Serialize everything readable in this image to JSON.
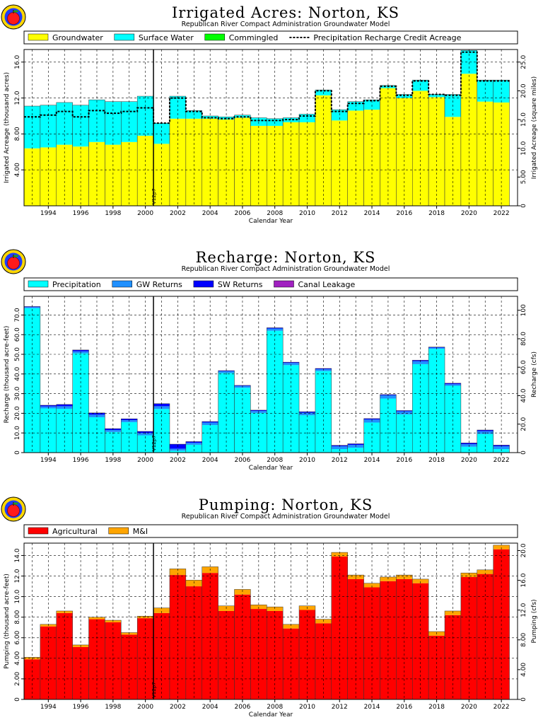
{
  "common": {
    "subtitle": "Republican River Compact Administration Groundwater Model",
    "xlabel": "Calendar Year",
    "marker_label": "V12p7",
    "marker_year": 2000.5,
    "logo_icon": "apple-logo-icon",
    "year_ticks": [
      "1994",
      "1996",
      "1998",
      "2000",
      "2002",
      "2004",
      "2006",
      "2008",
      "2010",
      "2012",
      "2014",
      "2016",
      "2018",
      "2020",
      "2022"
    ]
  },
  "colors": {
    "groundwater": "#ffff00",
    "surface_water": "#00ffff",
    "commingled": "#00ff00",
    "precipitation": "#00ffff",
    "gw_returns": "#2090ff",
    "sw_returns": "#0000ff",
    "canal_leakage": "#a020c0",
    "agricultural": "#ff0000",
    "mi": "#ffa500"
  },
  "chart_data": [
    {
      "type": "bar",
      "stacked": true,
      "title": "Irrigated Acres: Norton, KS",
      "subtitle": "Republican River Compact Administration Groundwater Model",
      "xlabel": "Calendar Year",
      "ylabel": "Irrigated Acreage (thousand acres)",
      "y2label": "Irrigated Acreage (square miles)",
      "ylim": [
        0,
        17.4
      ],
      "yticks": [
        "4.00",
        "8.00",
        "12.0",
        "16.0"
      ],
      "y2ticks": [
        "0",
        "5.00",
        "10.0",
        "15.0",
        "20.0",
        "25.0"
      ],
      "grid": true,
      "legend_position": "top",
      "x": [
        1993,
        1994,
        1995,
        1996,
        1997,
        1998,
        1999,
        2000,
        2001,
        2002,
        2003,
        2004,
        2005,
        2006,
        2007,
        2008,
        2009,
        2010,
        2011,
        2012,
        2013,
        2014,
        2015,
        2016,
        2017,
        2018,
        2019,
        2020,
        2021,
        2022
      ],
      "series": [
        {
          "name": "Groundwater",
          "color": "#ffff00",
          "values": [
            6.4,
            6.5,
            6.8,
            6.6,
            7.1,
            6.8,
            7.1,
            7.8,
            6.9,
            9.7,
            9.7,
            9.7,
            9.6,
            9.8,
            8.9,
            8.9,
            9.3,
            9.3,
            12.3,
            9.5,
            10.6,
            10.7,
            13.1,
            12.0,
            12.8,
            12.1,
            9.9,
            14.7,
            11.6,
            11.5
          ]
        },
        {
          "name": "Surface Water",
          "color": "#00ffff",
          "values": [
            4.7,
            4.7,
            4.7,
            4.6,
            4.7,
            4.8,
            4.5,
            4.4,
            2.3,
            2.5,
            0.9,
            0.3,
            0.3,
            0.3,
            0.9,
            0.8,
            0.5,
            0.9,
            0.6,
            1.2,
            1.0,
            1.1,
            0.3,
            0.4,
            1.2,
            0.3,
            2.5,
            2.6,
            2.4,
            2.5
          ]
        },
        {
          "name": "Commingled",
          "color": "#00ff00",
          "values": [
            0,
            0,
            0,
            0,
            0,
            0,
            0,
            0,
            0,
            0,
            0,
            0,
            0,
            0,
            0,
            0,
            0,
            0,
            0,
            0,
            0,
            0,
            0,
            0,
            0,
            0,
            0,
            0,
            0,
            0
          ]
        }
      ],
      "line_series": {
        "name": "Precipitation Recharge Credit Acreage",
        "values": [
          9.9,
          10.1,
          10.5,
          9.9,
          10.6,
          10.3,
          10.5,
          10.9,
          9.2,
          12.0,
          10.5,
          9.8,
          9.7,
          9.9,
          9.5,
          9.5,
          9.6,
          10.0,
          12.8,
          10.5,
          11.4,
          11.7,
          13.3,
          12.3,
          13.9,
          12.4,
          12.3,
          17.1,
          13.9,
          13.9
        ]
      }
    },
    {
      "type": "bar",
      "stacked": true,
      "title": "Recharge: Norton, KS",
      "subtitle": "Republican River Compact Administration Groundwater Model",
      "xlabel": "Calendar Year",
      "ylabel": "Recharge (thousand acre-feet)",
      "y2label": "Recharge (cfs)",
      "ylim": [
        0,
        79.5
      ],
      "yticks": [
        "0",
        "10.0",
        "20.0",
        "30.0",
        "40.0",
        "50.0",
        "60.0",
        "70.0"
      ],
      "y2ticks": [
        "0",
        "20.0",
        "40.0",
        "60.0",
        "80.0",
        "100"
      ],
      "grid": true,
      "legend_position": "top",
      "x": [
        1993,
        1994,
        1995,
        1996,
        1997,
        1998,
        1999,
        2000,
        2001,
        2002,
        2003,
        2004,
        2005,
        2006,
        2007,
        2008,
        2009,
        2010,
        2011,
        2012,
        2013,
        2014,
        2015,
        2016,
        2017,
        2018,
        2019,
        2020,
        2021,
        2022
      ],
      "series": [
        {
          "name": "Precipitation",
          "color": "#00ffff",
          "values": [
            73.5,
            22.5,
            22.3,
            50.5,
            18.0,
            10.5,
            15.5,
            8.8,
            22.2,
            1.0,
            4.0,
            14.0,
            40.5,
            33.0,
            20.2,
            62.0,
            44.5,
            19.0,
            41.5,
            1.8,
            2.5,
            15.3,
            27.5,
            19.5,
            45.0,
            52.8,
            34.0,
            3.0,
            9.5,
            1.8
          ]
        },
        {
          "name": "GW Returns",
          "color": "#2090ff",
          "values": [
            0.5,
            1.0,
            1.3,
            1.0,
            1.3,
            1.0,
            1.0,
            1.2,
            1.4,
            1.0,
            1.0,
            1.3,
            0.9,
            0.9,
            1.0,
            1.1,
            1.1,
            1.3,
            0.9,
            1.4,
            1.4,
            1.5,
            1.6,
            1.5,
            1.5,
            0.6,
            0.8,
            1.3,
            1.4,
            1.4
          ]
        },
        {
          "name": "SW Returns",
          "color": "#0000ff",
          "values": [
            0.3,
            0.6,
            0.9,
            0.7,
            0.9,
            0.7,
            0.7,
            0.8,
            1.3,
            2.3,
            0.6,
            0.5,
            0.3,
            0.3,
            0.4,
            0.4,
            0.4,
            0.5,
            0.4,
            0.5,
            0.6,
            0.5,
            0.4,
            0.4,
            0.5,
            0.3,
            0.5,
            0.6,
            0.6,
            0.6
          ]
        },
        {
          "name": "Canal Leakage",
          "color": "#a020c0",
          "values": [
            0,
            0,
            0,
            0,
            0,
            0,
            0,
            0,
            0,
            0,
            0,
            0,
            0,
            0,
            0,
            0,
            0,
            0,
            0,
            0,
            0,
            0,
            0,
            0,
            0,
            0,
            0,
            0,
            0,
            0
          ]
        }
      ]
    },
    {
      "type": "bar",
      "stacked": true,
      "title": "Pumping: Norton, KS",
      "subtitle": "Republican River Compact Administration Groundwater Model",
      "xlabel": "Calendar Year",
      "ylabel": "Pumping (thousand acre-feet)",
      "y2label": "Pumping (cfs)",
      "ylim": [
        0,
        15.2
      ],
      "yticks": [
        "0",
        "2.00",
        "4.00",
        "6.00",
        "8.00",
        "10.0",
        "12.0",
        "14.0"
      ],
      "y2ticks": [
        "0",
        "4.00",
        "8.00",
        "12.0",
        "16.0",
        "20.0"
      ],
      "grid": true,
      "legend_position": "top",
      "x": [
        1993,
        1994,
        1995,
        1996,
        1997,
        1998,
        1999,
        2000,
        2001,
        2002,
        2003,
        2004,
        2005,
        2006,
        2007,
        2008,
        2009,
        2010,
        2011,
        2012,
        2013,
        2014,
        2015,
        2016,
        2017,
        2018,
        2019,
        2020,
        2021,
        2022
      ],
      "series": [
        {
          "name": "Agricultural",
          "color": "#ff0000",
          "values": [
            3.9,
            7.1,
            8.4,
            5.1,
            7.8,
            7.5,
            6.3,
            7.9,
            8.4,
            12.1,
            11.0,
            12.3,
            8.6,
            10.2,
            8.8,
            8.6,
            6.9,
            8.7,
            7.4,
            13.9,
            11.7,
            10.9,
            11.5,
            11.7,
            11.3,
            6.2,
            8.2,
            11.9,
            12.2,
            14.6
          ]
        },
        {
          "name": "M&I",
          "color": "#ffa500",
          "values": [
            0.2,
            0.2,
            0.2,
            0.2,
            0.2,
            0.2,
            0.2,
            0.2,
            0.5,
            0.6,
            0.6,
            0.6,
            0.5,
            0.5,
            0.4,
            0.4,
            0.4,
            0.4,
            0.4,
            0.4,
            0.4,
            0.4,
            0.4,
            0.4,
            0.4,
            0.4,
            0.4,
            0.4,
            0.4,
            0.4
          ]
        }
      ]
    }
  ]
}
